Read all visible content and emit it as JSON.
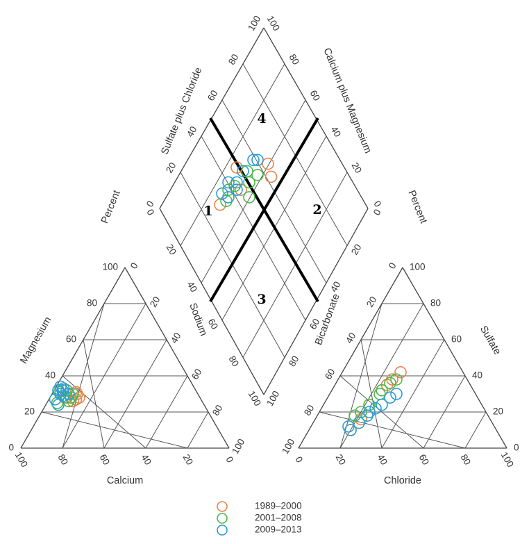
{
  "chart_data": {
    "type": "scatter",
    "subtype": "piper-diagram",
    "axis_labels": {
      "magnesium": "Magnesium",
      "calcium": "Calcium",
      "sodium": "Sodium",
      "chloride": "Chloride",
      "sulfate": "Sulfate",
      "bicarbonate": "Bicarbonate",
      "sulfate_plus_chloride": "Sulfate plus Chloride",
      "calcium_plus_magnesium": "Calcium plus Magnesium",
      "percent_left": "Percent",
      "percent_right": "Percent"
    },
    "tick_labels": [
      "0",
      "20",
      "40",
      "60",
      "80",
      "100"
    ],
    "zone_labels": [
      "1",
      "2",
      "3",
      "4"
    ],
    "dividers": "X through diamond center",
    "series": [
      {
        "name": "1989–2000",
        "color": "#E8834A",
        "cation_mg_ca": [
          [
            28,
            58
          ],
          [
            30,
            58
          ],
          [
            26,
            62
          ],
          [
            28,
            65
          ],
          [
            31,
            58
          ],
          [
            27,
            60
          ]
        ],
        "anion_cl_so4": [
          [
            20,
            10
          ],
          [
            24,
            32
          ],
          [
            26,
            38
          ],
          [
            28,
            42
          ],
          [
            22,
            16
          ],
          [
            25,
            35
          ]
        ]
      },
      {
        "name": "2001–2008",
        "color": "#4CB849",
        "cation_mg_ca": [
          [
            28,
            64
          ],
          [
            26,
            64
          ],
          [
            30,
            60
          ],
          [
            32,
            62
          ],
          [
            28,
            62
          ],
          [
            25,
            70
          ],
          [
            31,
            66
          ]
        ],
        "anion_cl_so4": [
          [
            24,
            32
          ],
          [
            22,
            24
          ],
          [
            20,
            20
          ],
          [
            26,
            36
          ],
          [
            28,
            38
          ],
          [
            18,
            18
          ],
          [
            24,
            30
          ]
        ]
      },
      {
        "name": "2009–2013",
        "color": "#2A9CD2",
        "cation_mg_ca": [
          [
            30,
            62
          ],
          [
            33,
            63
          ],
          [
            32,
            64
          ],
          [
            34,
            64
          ],
          [
            30,
            66
          ],
          [
            27,
            70
          ],
          [
            24,
            70
          ],
          [
            32,
            66
          ],
          [
            29,
            65
          ]
        ],
        "anion_cl_so4": [
          [
            28,
            24
          ],
          [
            26,
            22
          ],
          [
            24,
            18
          ],
          [
            22,
            14
          ],
          [
            20,
            10
          ],
          [
            32,
            30
          ],
          [
            30,
            28
          ],
          [
            18,
            12
          ],
          [
            24,
            20
          ]
        ]
      }
    ],
    "diamond_points": [
      {
        "series": 0,
        "so4cl": 30,
        "camg": 72
      },
      {
        "series": 0,
        "so4cl": 62,
        "camg": 55
      },
      {
        "series": 0,
        "so4cl": 64,
        "camg": 60
      },
      {
        "series": 0,
        "so4cl": 48,
        "camg": 74
      },
      {
        "series": 0,
        "so4cl": 44,
        "camg": 66
      },
      {
        "series": 1,
        "so4cl": 42,
        "camg": 70
      },
      {
        "series": 1,
        "so4cl": 52,
        "camg": 68
      },
      {
        "series": 1,
        "so4cl": 50,
        "camg": 64
      },
      {
        "series": 1,
        "so4cl": 38,
        "camg": 72
      },
      {
        "series": 1,
        "so4cl": 34,
        "camg": 70
      },
      {
        "series": 1,
        "so4cl": 46,
        "camg": 60
      },
      {
        "series": 1,
        "so4cl": 56,
        "camg": 62
      },
      {
        "series": 2,
        "so4cl": 36,
        "camg": 70
      },
      {
        "series": 2,
        "so4cl": 40,
        "camg": 74
      },
      {
        "series": 2,
        "so4cl": 44,
        "camg": 70
      },
      {
        "series": 2,
        "so4cl": 58,
        "camg": 68
      },
      {
        "series": 2,
        "so4cl": 60,
        "camg": 66
      },
      {
        "series": 2,
        "so4cl": 50,
        "camg": 70
      },
      {
        "series": 2,
        "so4cl": 34,
        "camg": 74
      },
      {
        "series": 2,
        "so4cl": 42,
        "camg": 68
      }
    ]
  },
  "legend": {
    "placement": "bottom-center",
    "items": [
      {
        "label": "1989–2000",
        "color": "#E8834A"
      },
      {
        "label": "2001–2008",
        "color": "#4CB849"
      },
      {
        "label": "2009–2013",
        "color": "#2A9CD2"
      }
    ]
  }
}
